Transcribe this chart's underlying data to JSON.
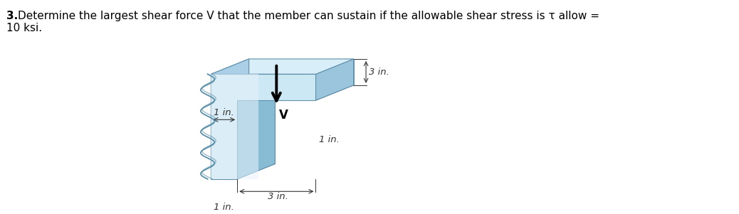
{
  "fig_width": 10.38,
  "fig_height": 3.01,
  "bg_color": "#ffffff",
  "title_fontsize": 11,
  "dim_color": "#333333",
  "arrow_color": "#000000",
  "label_1in_web": "1 in.",
  "label_1in_bottom": "1 in.",
  "label_3in_horiz": "3 in.",
  "label_1in_right": "1 in.",
  "label_3in_vert": "3 in.",
  "label_V": "V",
  "face_front_light": "#cce8f5",
  "face_front_mid": "#b0d8ef",
  "face_top": "#d8eef8",
  "face_right": "#9ac5dc",
  "face_notch_top": "#7ab0cc",
  "face_notch_right": "#88bcd4",
  "face_bottom": "#85b5ce",
  "face_back": "#8bbdd4",
  "edge_color": "#6090aa",
  "highlight_color": "#e8f4fc"
}
